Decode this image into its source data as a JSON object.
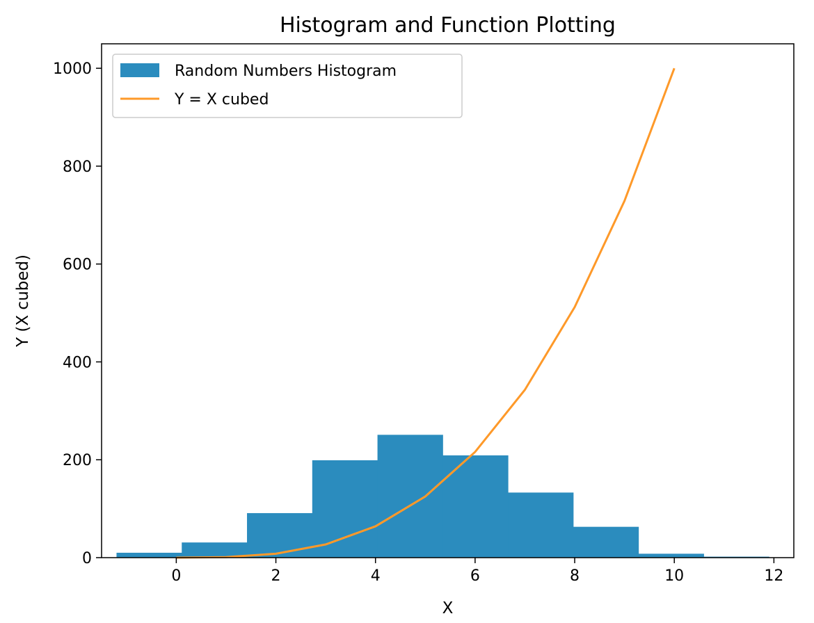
{
  "chart_data": {
    "type": "bar",
    "title": "Histogram and Function Plotting",
    "xlabel": "X",
    "ylabel": "Y (X cubed)",
    "xlim": [
      -1.5,
      12.4
    ],
    "ylim": [
      0,
      1050
    ],
    "xticks": [
      "0",
      "2",
      "4",
      "6",
      "8",
      "10",
      "12"
    ],
    "yticks": [
      "0",
      "200",
      "400",
      "600",
      "800",
      "1000"
    ],
    "legend_position": "top-left",
    "grid": false,
    "histogram": {
      "name": "Random Numbers Histogram",
      "color": "#2b8cbe",
      "bin_edges": [
        -1.2,
        0.11,
        1.42,
        2.73,
        4.04,
        5.35,
        6.66,
        7.97,
        9.28,
        10.59,
        11.9
      ],
      "counts": [
        10,
        31,
        91,
        199,
        251,
        209,
        133,
        63,
        8,
        2
      ]
    },
    "line": {
      "name": "Y = X cubed",
      "color": "#fe9929",
      "x": [
        0,
        1,
        2,
        3,
        4,
        5,
        6,
        7,
        8,
        9,
        10
      ],
      "y": [
        0,
        1,
        8,
        27,
        64,
        125,
        216,
        343,
        512,
        729,
        1000
      ]
    }
  }
}
